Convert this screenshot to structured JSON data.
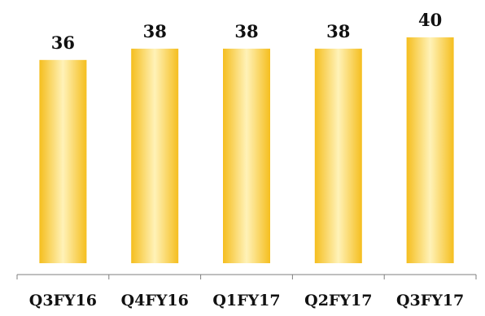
{
  "chart_data": {
    "type": "bar",
    "categories": [
      "Q3FY16",
      "Q4FY16",
      "Q1FY17",
      "Q2FY17",
      "Q3FY17"
    ],
    "values": [
      36,
      38,
      38,
      38,
      40
    ],
    "title": "",
    "xlabel": "",
    "ylabel": "",
    "ylim": [
      0,
      40
    ],
    "grid": false,
    "legend": "none",
    "colors": {
      "bar_edge": "#f5be1e",
      "bar_center": "#fff2b8",
      "axis": "#7f7f7f",
      "text": "#111111"
    }
  }
}
